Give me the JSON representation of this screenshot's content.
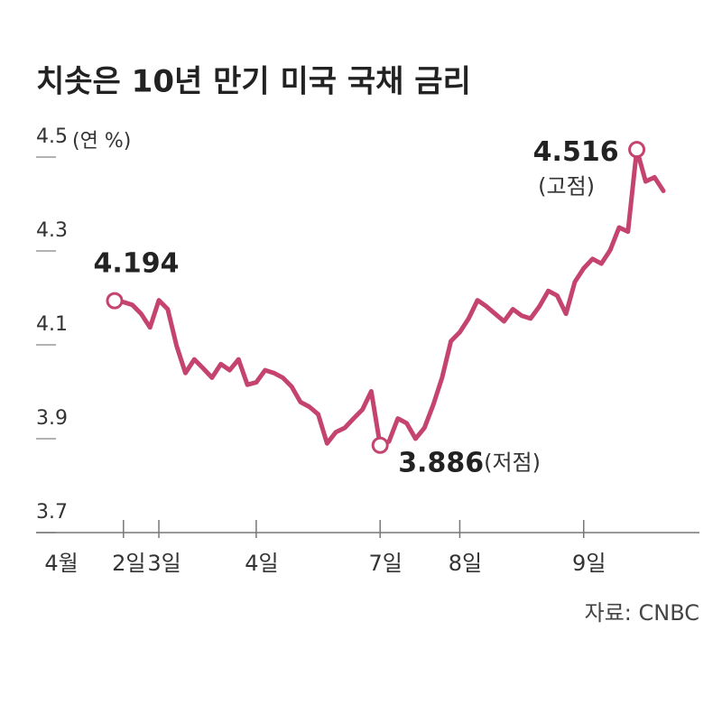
{
  "chart_data": {
    "type": "line",
    "title": "치솟은 10년 만기 미국 국채 금리",
    "y_unit": "(연 %)",
    "x_prefix": "4월",
    "source": "자료: CNBC",
    "categories": [
      null,
      "2일",
      null,
      null,
      null,
      "3일",
      null,
      null,
      null,
      null,
      null,
      null,
      null,
      null,
      null,
      null,
      "4일",
      null,
      null,
      null,
      null,
      null,
      null,
      null,
      null,
      null,
      null,
      null,
      null,
      null,
      "7일",
      null,
      null,
      null,
      null,
      null,
      null,
      null,
      null,
      "8일",
      null,
      null,
      null,
      null,
      null,
      null,
      null,
      null,
      null,
      null,
      null,
      null,
      null,
      "9일",
      null,
      null,
      null,
      null,
      null,
      null,
      null,
      null,
      null
    ],
    "series": [
      {
        "color": "#c4436f",
        "values": [
          4.194,
          4.191,
          4.185,
          4.166,
          4.137,
          4.195,
          4.176,
          4.098,
          4.04,
          4.069,
          4.05,
          4.03,
          4.059,
          4.046,
          4.069,
          4.015,
          4.02,
          4.046,
          4.04,
          4.03,
          4.011,
          3.978,
          3.968,
          3.952,
          3.89,
          3.914,
          3.923,
          3.943,
          3.962,
          4.001,
          3.886,
          3.894,
          3.943,
          3.933,
          3.9,
          3.923,
          3.972,
          4.03,
          4.108,
          4.127,
          4.156,
          4.195,
          4.182,
          4.166,
          4.15,
          4.176,
          4.162,
          4.156,
          4.182,
          4.215,
          4.205,
          4.166,
          4.234,
          4.263,
          4.283,
          4.273,
          4.302,
          4.35,
          4.341,
          4.516,
          4.448,
          4.457,
          4.428
        ],
        "value_labels": [
          "4.194",
          null,
          null,
          null,
          null,
          null,
          null,
          null,
          null,
          null,
          null,
          null,
          null,
          null,
          null,
          null,
          null,
          null,
          null,
          null,
          null,
          null,
          null,
          null,
          null,
          null,
          null,
          null,
          null,
          null,
          "3.886",
          null,
          null,
          null,
          null,
          null,
          null,
          null,
          null,
          null,
          null,
          null,
          null,
          null,
          null,
          null,
          null,
          null,
          null,
          null,
          null,
          null,
          null,
          null,
          null,
          null,
          null,
          null,
          null,
          "4.516",
          null,
          null,
          null
        ],
        "point_notes": [
          null,
          null,
          null,
          null,
          null,
          null,
          null,
          null,
          null,
          null,
          null,
          null,
          null,
          null,
          null,
          null,
          null,
          null,
          null,
          null,
          null,
          null,
          null,
          null,
          null,
          null,
          null,
          null,
          null,
          null,
          "(저점)",
          null,
          null,
          null,
          null,
          null,
          null,
          null,
          null,
          null,
          null,
          null,
          null,
          null,
          null,
          null,
          null,
          null,
          null,
          null,
          null,
          null,
          null,
          null,
          null,
          null,
          null,
          null,
          null,
          "(고점)",
          null,
          null,
          null
        ]
      }
    ],
    "ylim": [
      3.7,
      4.7
    ],
    "yticks": [
      3.7,
      3.9,
      4.1,
      4.3,
      4.5
    ],
    "grid": true
  }
}
